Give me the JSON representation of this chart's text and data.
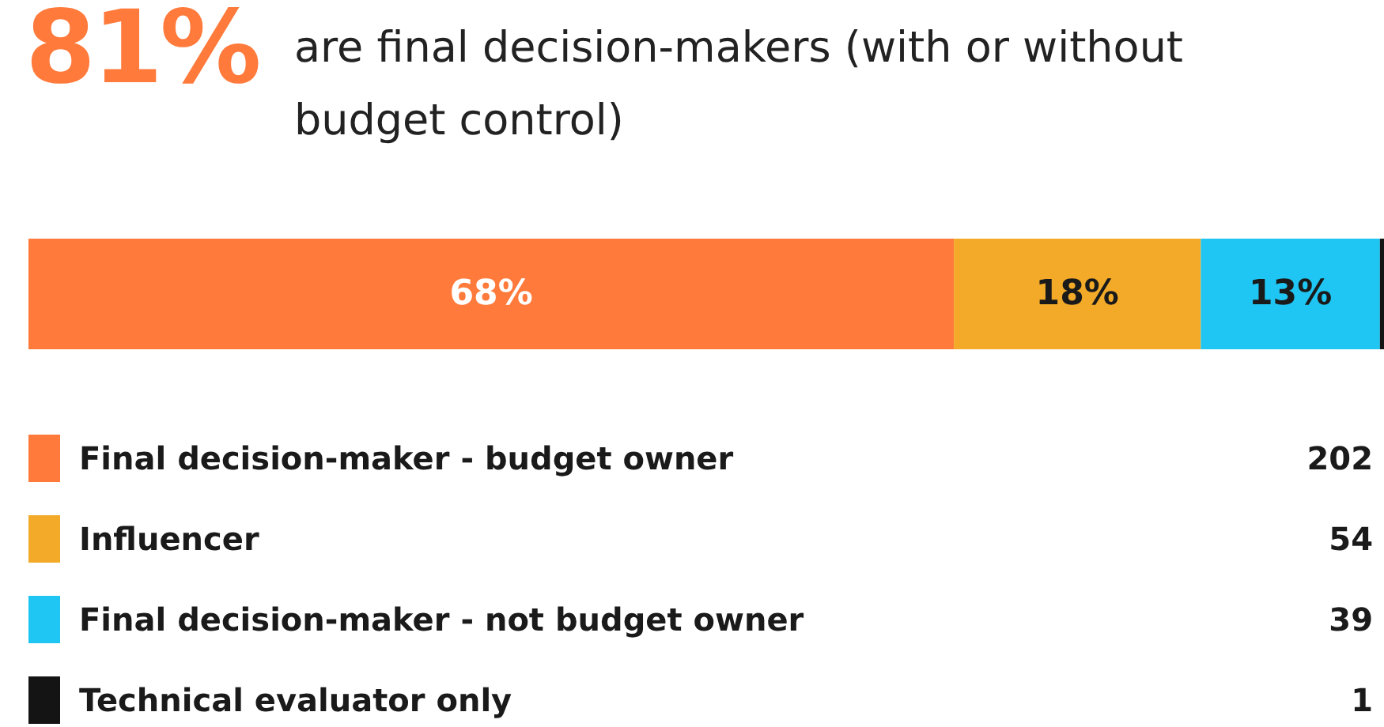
{
  "chart_data": {
    "type": "bar",
    "orientation": "horizontal",
    "stacked": true,
    "title": "81%",
    "subtitle": "are final decision-makers (with or without budget control)",
    "categories": [
      null
    ],
    "series": [
      {
        "name": "Final decision-maker - budget owner",
        "color": "#ff7a3b",
        "values": [
          68.2
        ],
        "value_labels": [
          "68%"
        ]
      },
      {
        "name": "Influencer",
        "color": "#f2aa28",
        "values": [
          18.2
        ],
        "value_labels": [
          "18%"
        ]
      },
      {
        "name": "Final decision-maker - not budget owner",
        "color": "#20c6f3",
        "values": [
          13.2
        ],
        "value_labels": [
          "13%"
        ]
      },
      {
        "name": "Technical evaluator only",
        "color": "#141414",
        "values": [
          0.3
        ],
        "value_labels": [
          null
        ]
      }
    ],
    "annotations": [
      "202",
      "54",
      "39",
      "1"
    ],
    "legend": "bottom"
  }
}
